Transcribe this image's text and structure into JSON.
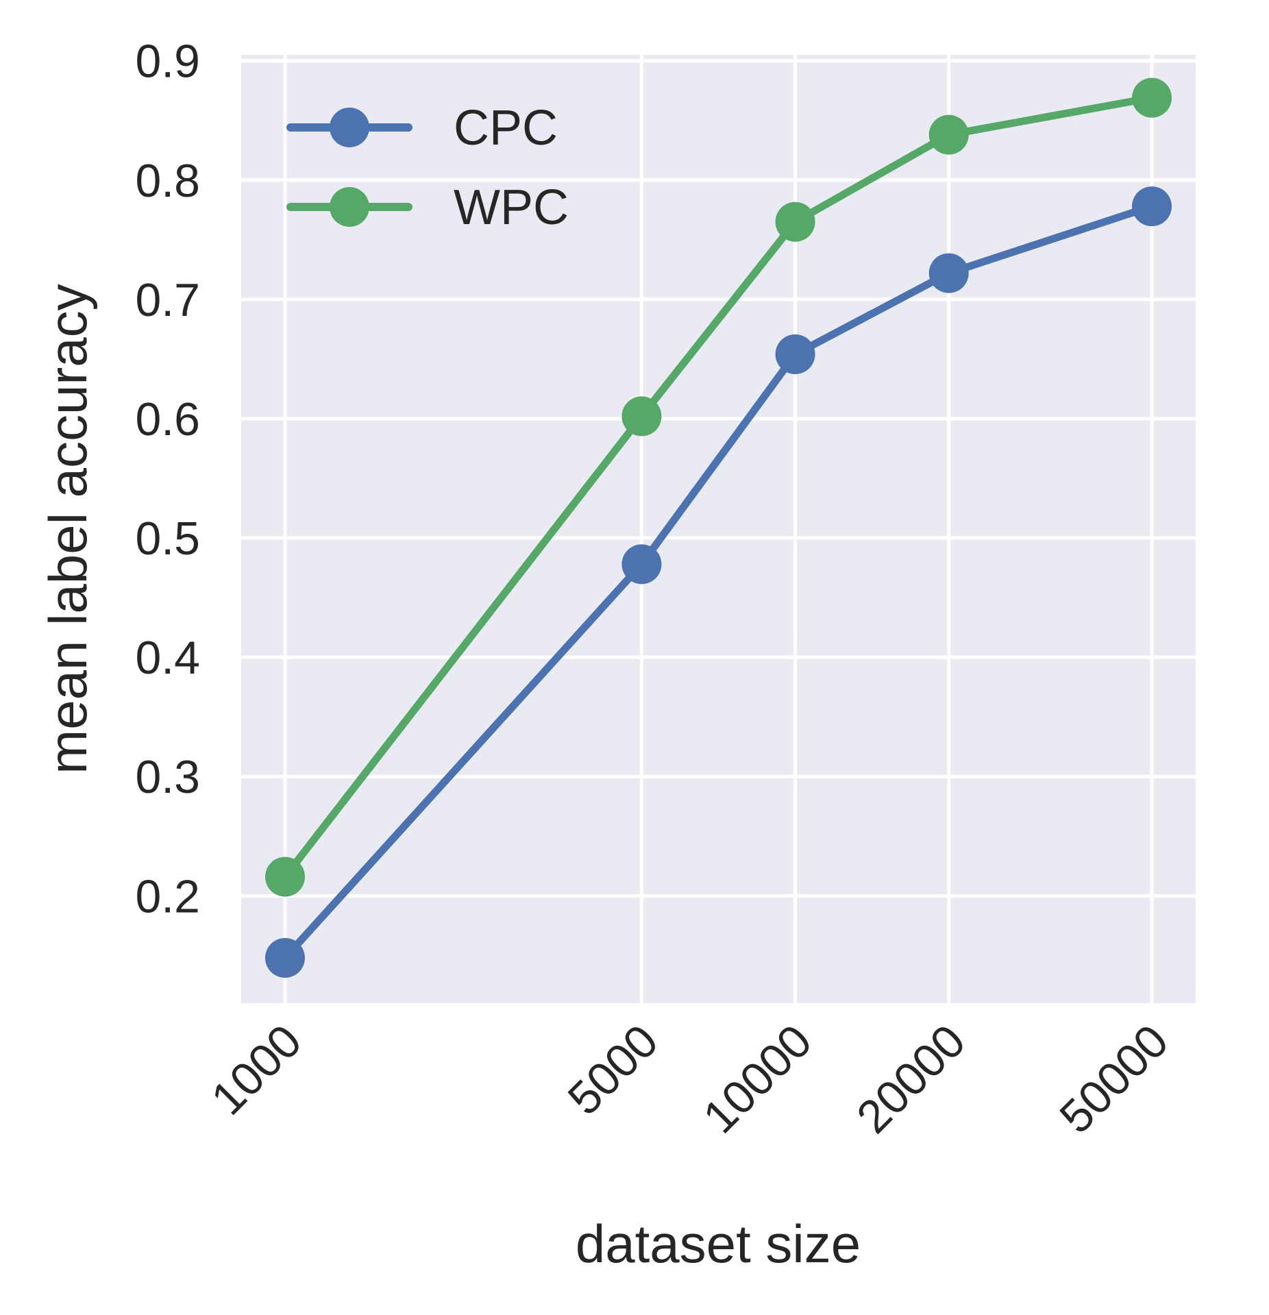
{
  "chart_data": {
    "type": "line",
    "title": "",
    "xlabel": "dataset size",
    "ylabel": "mean label accuracy",
    "x_scale": "log",
    "x": [
      1000,
      5000,
      10000,
      20000,
      50000
    ],
    "x_tick_labels": [
      "1000",
      "5000",
      "10000",
      "20000",
      "50000"
    ],
    "y_ticks": [
      0.2,
      0.3,
      0.4,
      0.5,
      0.6,
      0.7,
      0.8,
      0.9
    ],
    "y_tick_labels": [
      "0.2",
      "0.3",
      "0.4",
      "0.5",
      "0.6",
      "0.7",
      "0.8",
      "0.9"
    ],
    "ylim": [
      0.11,
      0.905
    ],
    "grid": true,
    "legend_position": "upper-left",
    "series": [
      {
        "name": "CPC",
        "color": "#4C72B0",
        "values": [
          0.148,
          0.478,
          0.654,
          0.722,
          0.778
        ]
      },
      {
        "name": "WPC",
        "color": "#55A868",
        "values": [
          0.216,
          0.602,
          0.765,
          0.838,
          0.869
        ]
      }
    ],
    "style": {
      "plot_background": "#EAEAF2",
      "grid_color": "#FFFFFF"
    }
  }
}
